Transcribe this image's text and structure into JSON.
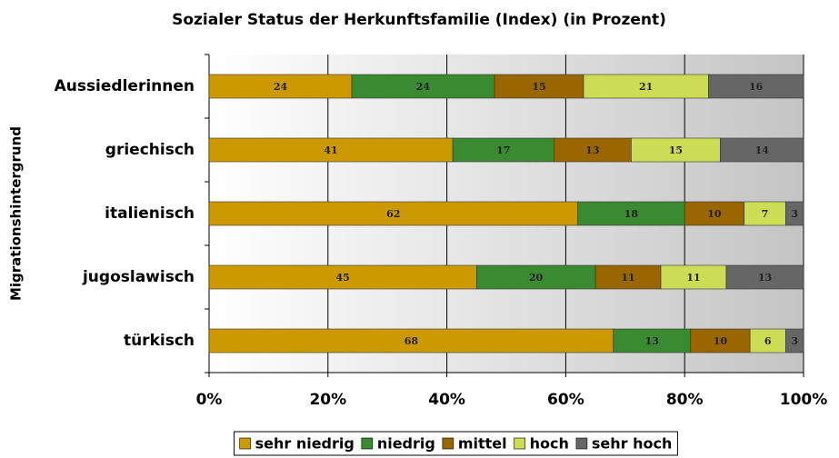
{
  "chart_data": {
    "type": "stacked_barh",
    "title": "Sozialer Status der Herkunftsfamilie (Index) (in Prozent)",
    "ylabel": "Migrationshintergrund",
    "categories": [
      "Aussiedlerinnen",
      "griechisch",
      "italienisch",
      "jugoslawisch",
      "türkisch"
    ],
    "series": [
      {
        "name": "sehr niedrig",
        "color": "#cc9900",
        "values": [
          24,
          41,
          62,
          45,
          68
        ]
      },
      {
        "name": "niedrig",
        "color": "#3a8a32",
        "values": [
          24,
          17,
          18,
          20,
          13
        ]
      },
      {
        "name": "mittel",
        "color": "#996600",
        "values": [
          15,
          13,
          10,
          11,
          10
        ]
      },
      {
        "name": "hoch",
        "color": "#ccdd55",
        "values": [
          21,
          15,
          7,
          11,
          6
        ]
      },
      {
        "name": "sehr hoch",
        "color": "#666666",
        "values": [
          16,
          14,
          3,
          13,
          3
        ]
      }
    ],
    "xlim": [
      0,
      100
    ],
    "xticks": [
      {
        "value": 0,
        "label": "0%"
      },
      {
        "value": 20,
        "label": "20%"
      },
      {
        "value": 40,
        "label": "40%"
      },
      {
        "value": 60,
        "label": "60%"
      },
      {
        "value": 80,
        "label": "80%"
      },
      {
        "value": 100,
        "label": "100%"
      }
    ],
    "grid": true,
    "legend": "bottom"
  }
}
